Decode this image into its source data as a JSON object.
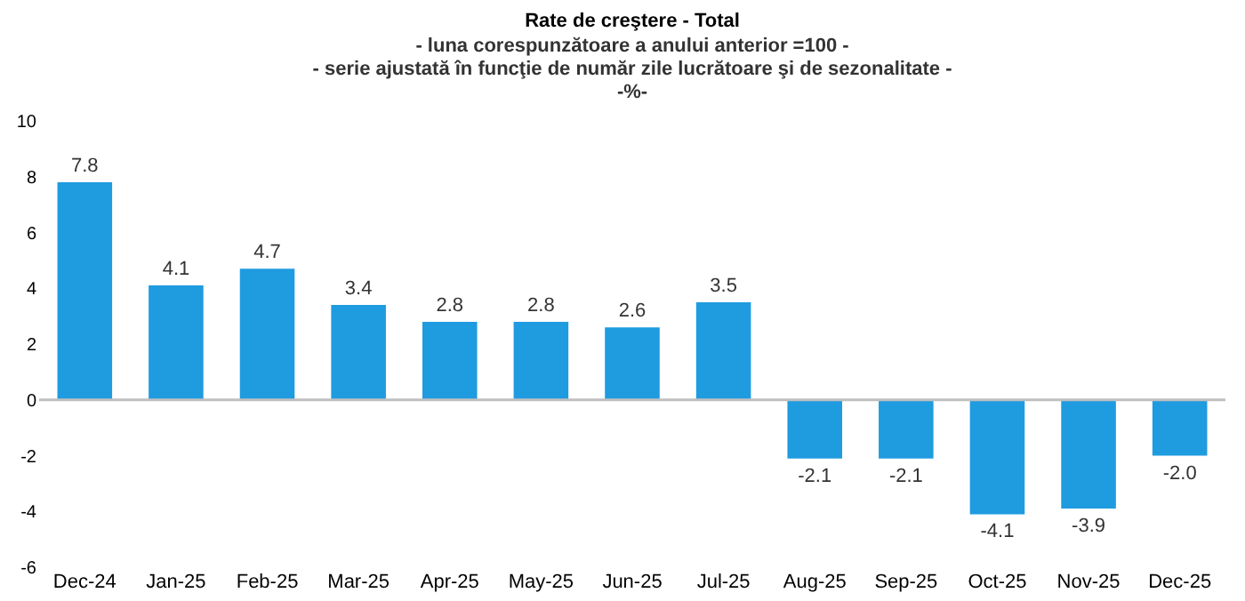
{
  "chart_data": {
    "type": "bar",
    "title": "Rate de creştere - Total",
    "subtitle": "- luna corespunzătoare a anului anterior =100 -\n- serie ajustată în funcţie de număr zile lucrătoare şi de sezonalitate -\n-%-",
    "categories": [
      "Dec-24",
      "Jan-25",
      "Feb-25",
      "Mar-25",
      "Apr-25",
      "May-25",
      "Jun-25",
      "Jul-25",
      "Aug-25",
      "Sep-25",
      "Oct-25",
      "Nov-25",
      "Dec-25"
    ],
    "values": [
      7.8,
      4.1,
      4.7,
      3.4,
      2.8,
      2.8,
      2.6,
      3.5,
      -2.1,
      -2.1,
      -4.1,
      -3.9,
      -2.0
    ],
    "value_labels": [
      "7.8",
      "4.1",
      "4.7",
      "3.4",
      "2.8",
      "2.8",
      "2.6",
      "3.5",
      "-2.1",
      "-2.1",
      "-4.1",
      "-3.9",
      "-2.0"
    ],
    "color": "#1f9be0",
    "ylim": [
      -6,
      10
    ],
    "yticks": [
      -6,
      -4,
      -2,
      0,
      2,
      4,
      6,
      8,
      10
    ],
    "grid": false,
    "ref_lines": [
      {
        "axis": "y",
        "value": 0,
        "color": "#bfbfbf"
      }
    ]
  }
}
